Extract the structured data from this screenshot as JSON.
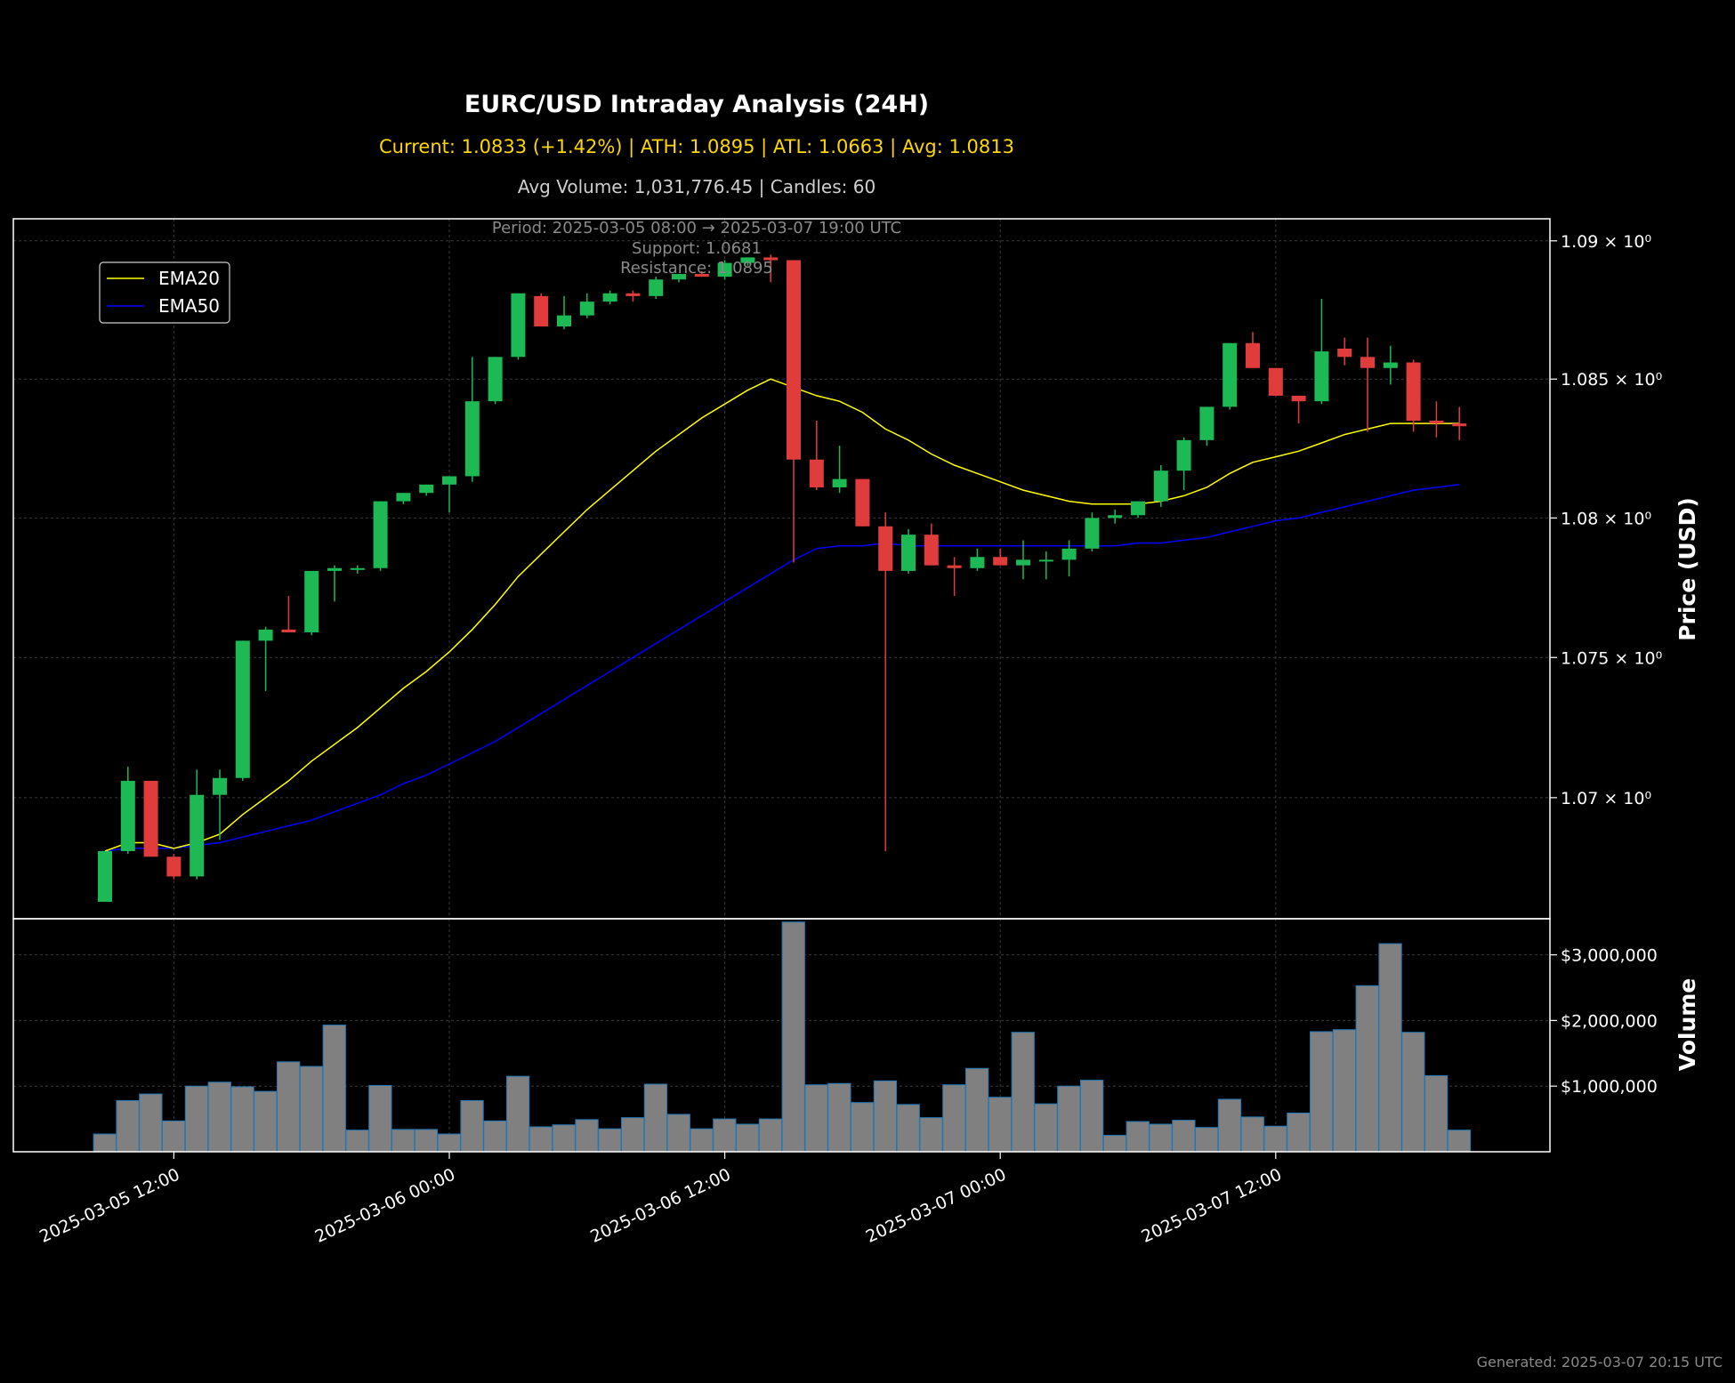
{
  "header": {
    "title": "EURC/USD Intraday Analysis (24H)",
    "subtitle": "Current: 1.0833 (+1.42%) | ATH: 1.0895 | ATL: 1.0663 | Avg: 1.0813",
    "stats": "Avg Volume: 1,031,776.45 | Candles: 60"
  },
  "annotations": {
    "period": "Period: 2025-03-05 08:00 → 2025-03-07 19:00 UTC",
    "support": "Support: 1.0681",
    "resistance": "Resistance: 1.0895"
  },
  "footer": {
    "generated": "Generated: 2025-03-07 20:15 UTC"
  },
  "colors": {
    "up": "#1db954",
    "down": "#e03c3c",
    "ema20": "#ffff00",
    "ema50": "#0000ff",
    "volume_fill": "#808080",
    "volume_edge": "#1f77b4"
  },
  "chart_data": [
    {
      "type": "candlestick",
      "title": "EURC/USD Intraday Analysis (24H)",
      "ylabel": "Price (USD)",
      "yscale": "log",
      "ylim": [
        1.0657,
        1.0908
      ],
      "yticks": [
        1.07,
        1.075,
        1.08,
        1.085,
        1.09
      ],
      "ytick_labels": [
        "1.07 × 10⁰",
        "1.075 × 10⁰",
        "1.08 × 10⁰",
        "1.085 × 10⁰",
        "1.09 × 10⁰"
      ],
      "xticks": [
        3,
        15,
        27,
        39,
        51
      ],
      "xtick_labels": [
        "2025-03-05 12:00",
        "2025-03-06 00:00",
        "2025-03-06 12:00",
        "2025-03-07 00:00",
        "2025-03-07 12:00"
      ],
      "legend": {
        "position": "top-left",
        "entries": [
          "EMA20",
          "EMA50"
        ]
      },
      "grid": true,
      "ohlc": [
        [
          1.0663,
          1.0681,
          1.0663,
          1.0681
        ],
        [
          1.0681,
          1.0711,
          1.068,
          1.0706
        ],
        [
          1.0706,
          1.0706,
          1.0679,
          1.0679
        ],
        [
          1.0679,
          1.068,
          1.0671,
          1.0672
        ],
        [
          1.0672,
          1.071,
          1.0671,
          1.0701
        ],
        [
          1.0701,
          1.071,
          1.0685,
          1.0707
        ],
        [
          1.0707,
          1.0756,
          1.0706,
          1.0756
        ],
        [
          1.0756,
          1.0761,
          1.0738,
          1.076
        ],
        [
          1.076,
          1.0772,
          1.0759,
          1.0759
        ],
        [
          1.0759,
          1.0781,
          1.0758,
          1.0781
        ],
        [
          1.0781,
          1.0783,
          1.077,
          1.0782
        ],
        [
          1.0782,
          1.0783,
          1.078,
          1.0782
        ],
        [
          1.0782,
          1.0806,
          1.0781,
          1.0806
        ],
        [
          1.0806,
          1.0809,
          1.0805,
          1.0809
        ],
        [
          1.0809,
          1.0812,
          1.0808,
          1.0812
        ],
        [
          1.0812,
          1.0815,
          1.0802,
          1.0815
        ],
        [
          1.0815,
          1.0858,
          1.0813,
          1.0842
        ],
        [
          1.0842,
          1.0858,
          1.0841,
          1.0858
        ],
        [
          1.0858,
          1.0881,
          1.0857,
          1.0881
        ],
        [
          1.088,
          1.0881,
          1.0869,
          1.0869
        ],
        [
          1.0869,
          1.088,
          1.0868,
          1.0873
        ],
        [
          1.0873,
          1.0881,
          1.0872,
          1.0878
        ],
        [
          1.0878,
          1.0882,
          1.0877,
          1.0881
        ],
        [
          1.0881,
          1.0882,
          1.0878,
          1.088
        ],
        [
          1.088,
          1.0887,
          1.0879,
          1.0886
        ],
        [
          1.0886,
          1.0888,
          1.0885,
          1.0888
        ],
        [
          1.0888,
          1.0889,
          1.0887,
          1.0887
        ],
        [
          1.0887,
          1.0893,
          1.0886,
          1.0892
        ],
        [
          1.0892,
          1.0894,
          1.0891,
          1.0894
        ],
        [
          1.0894,
          1.0895,
          1.0885,
          1.0893
        ],
        [
          1.0893,
          1.0893,
          1.0784,
          1.0821
        ],
        [
          1.0821,
          1.0835,
          1.081,
          1.0811
        ],
        [
          1.0811,
          1.0826,
          1.0809,
          1.0814
        ],
        [
          1.0814,
          1.0814,
          1.0797,
          1.0797
        ],
        [
          1.0797,
          1.0802,
          1.0681,
          1.0781
        ],
        [
          1.0781,
          1.0796,
          1.078,
          1.0794
        ],
        [
          1.0794,
          1.0798,
          1.0783,
          1.0783
        ],
        [
          1.0783,
          1.0786,
          1.0772,
          1.0782
        ],
        [
          1.0782,
          1.0789,
          1.0781,
          1.0786
        ],
        [
          1.0786,
          1.0789,
          1.0783,
          1.0783
        ],
        [
          1.0783,
          1.0792,
          1.0778,
          1.0785
        ],
        [
          1.0785,
          1.0788,
          1.0778,
          1.0785
        ],
        [
          1.0785,
          1.0792,
          1.0779,
          1.0789
        ],
        [
          1.0789,
          1.0802,
          1.0788,
          1.08
        ],
        [
          1.08,
          1.0803,
          1.0798,
          1.0801
        ],
        [
          1.0801,
          1.0806,
          1.08,
          1.0806
        ],
        [
          1.0806,
          1.0819,
          1.0804,
          1.0817
        ],
        [
          1.0817,
          1.0829,
          1.081,
          1.0828
        ],
        [
          1.0828,
          1.084,
          1.0826,
          1.084
        ],
        [
          1.084,
          1.0863,
          1.0839,
          1.0863
        ],
        [
          1.0863,
          1.0867,
          1.0854,
          1.0854
        ],
        [
          1.0854,
          1.0854,
          1.0844,
          1.0844
        ],
        [
          1.0844,
          1.0844,
          1.0834,
          1.0842
        ],
        [
          1.0842,
          1.0879,
          1.0841,
          1.086
        ],
        [
          1.0861,
          1.0865,
          1.0855,
          1.0858
        ],
        [
          1.0858,
          1.0865,
          1.0831,
          1.0854
        ],
        [
          1.0854,
          1.0862,
          1.0848,
          1.0856
        ],
        [
          1.0856,
          1.0857,
          1.0831,
          1.0835
        ],
        [
          1.0835,
          1.0842,
          1.0829,
          1.0834
        ],
        [
          1.0834,
          1.084,
          1.0828,
          1.0833
        ]
      ],
      "ema20": [
        1.0681,
        1.0684,
        1.0684,
        1.0682,
        1.0684,
        1.0687,
        1.0694,
        1.07,
        1.0706,
        1.0713,
        1.0719,
        1.0725,
        1.0732,
        1.0739,
        1.0745,
        1.0752,
        1.076,
        1.0769,
        1.0779,
        1.0787,
        1.0795,
        1.0803,
        1.081,
        1.0817,
        1.0824,
        1.083,
        1.0836,
        1.0841,
        1.0846,
        1.085,
        1.0847,
        1.0844,
        1.0842,
        1.0838,
        1.0832,
        1.0828,
        1.0823,
        1.0819,
        1.0816,
        1.0813,
        1.081,
        1.0808,
        1.0806,
        1.0805,
        1.0805,
        1.0805,
        1.0806,
        1.0808,
        1.0811,
        1.0816,
        1.082,
        1.0822,
        1.0824,
        1.0827,
        1.083,
        1.0832,
        1.0834,
        1.0834,
        1.0834,
        1.0834
      ],
      "ema50": [
        1.0681,
        1.0682,
        1.0682,
        1.0682,
        1.0683,
        1.0684,
        1.0686,
        1.0688,
        1.069,
        1.0692,
        1.0695,
        1.0698,
        1.0701,
        1.0705,
        1.0708,
        1.0712,
        1.0716,
        1.072,
        1.0725,
        1.073,
        1.0735,
        1.074,
        1.0745,
        1.075,
        1.0755,
        1.076,
        1.0765,
        1.077,
        1.0775,
        1.078,
        1.0785,
        1.0789,
        1.079,
        1.079,
        1.0791,
        1.079,
        1.079,
        1.079,
        1.079,
        1.079,
        1.079,
        1.079,
        1.079,
        1.079,
        1.079,
        1.0791,
        1.0791,
        1.0792,
        1.0793,
        1.0795,
        1.0797,
        1.0799,
        1.08,
        1.0802,
        1.0804,
        1.0806,
        1.0808,
        1.081,
        1.0811,
        1.0812
      ]
    },
    {
      "type": "bar",
      "ylabel": "Volume",
      "ylim": [
        0,
        3550000
      ],
      "yticks": [
        1000000,
        2000000,
        3000000
      ],
      "ytick_labels": [
        "$1,000,000",
        "$2,000,000",
        "$3,000,000"
      ],
      "values": [
        270000,
        780000,
        880000,
        470000,
        1000000,
        1060000,
        990000,
        920000,
        1370000,
        1300000,
        1930000,
        330000,
        1010000,
        340000,
        340000,
        270000,
        780000,
        470000,
        1150000,
        380000,
        410000,
        490000,
        350000,
        520000,
        1030000,
        570000,
        350000,
        500000,
        420000,
        500000,
        3500000,
        1020000,
        1040000,
        750000,
        1080000,
        720000,
        520000,
        1020000,
        1270000,
        830000,
        1820000,
        730000,
        1000000,
        1090000,
        250000,
        460000,
        420000,
        480000,
        370000,
        800000,
        530000,
        390000,
        590000,
        1830000,
        1860000,
        2530000,
        3170000,
        1820000,
        1160000,
        330000
      ]
    }
  ]
}
